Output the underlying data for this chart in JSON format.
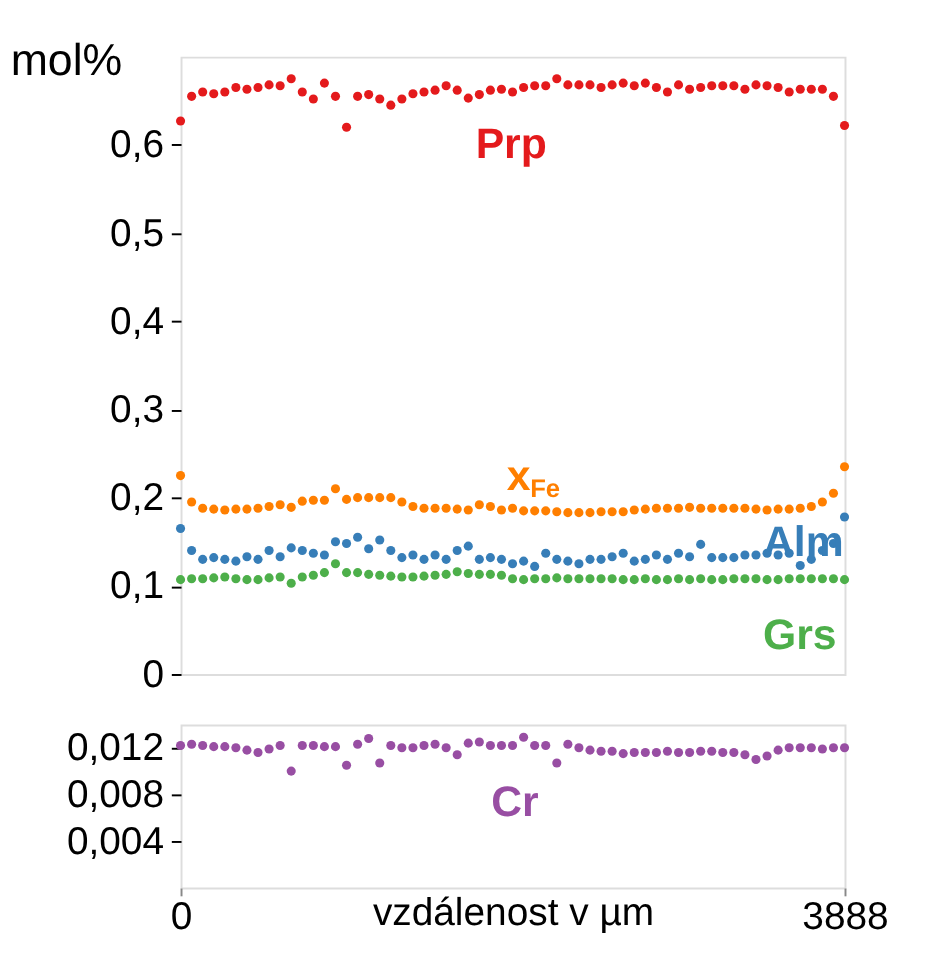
{
  "chart_data": [
    {
      "type": "scatter",
      "ylabel": "mol%",
      "tick_labels": "y",
      "grid": false,
      "marker": "circle",
      "x": [
        0,
        64.8,
        129.6,
        194.4,
        259.2,
        324,
        388.8,
        453.6,
        518.4,
        583.2,
        648,
        712.8,
        777.6,
        842.4,
        907.2,
        972,
        1036.8,
        1101.6,
        1166.4,
        1231.2,
        1296,
        1360.8,
        1425.6,
        1490.4,
        1555.2,
        1620,
        1684.8,
        1749.6,
        1814.4,
        1879.2,
        1944,
        2008.8,
        2073.6,
        2138.4,
        2203.2,
        2268,
        2332.8,
        2397.6,
        2462.4,
        2527.2,
        2592,
        2656.8,
        2721.6,
        2786.4,
        2851.2,
        2916,
        2980.8,
        3045.6,
        3110.4,
        3175.2,
        3240,
        3304.8,
        3369.6,
        3434.4,
        3499.2,
        3564,
        3628.8,
        3693.6,
        3758.4,
        3823.2,
        3888
      ],
      "xlim": [
        0,
        3888
      ],
      "ylim": [
        0,
        0.7
      ],
      "yticks": [
        0,
        {
          "value": 0.1,
          "label": "0,1"
        },
        {
          "value": 0.2,
          "label": "0,2"
        },
        {
          "value": 0.3,
          "label": "0,3"
        },
        {
          "value": 0.4,
          "label": "0,4"
        },
        {
          "value": 0.5,
          "label": "0,5"
        },
        {
          "value": 0.6,
          "label": "0,6"
        }
      ],
      "series": [
        {
          "name": "Prp",
          "color": "#e41a1c",
          "values": [
            0.627,
            0.655,
            0.66,
            0.658,
            0.66,
            0.665,
            0.663,
            0.665,
            0.668,
            0.667,
            0.675,
            0.66,
            0.652,
            0.67,
            0.655,
            0.62,
            0.655,
            0.657,
            0.652,
            0.645,
            0.652,
            0.658,
            0.66,
            0.662,
            0.667,
            0.662,
            0.653,
            0.657,
            0.662,
            0.663,
            0.66,
            0.665,
            0.667,
            0.667,
            0.675,
            0.668,
            0.668,
            0.668,
            0.665,
            0.668,
            0.67,
            0.667,
            0.67,
            0.665,
            0.66,
            0.668,
            0.663,
            0.665,
            0.667,
            0.667,
            0.667,
            0.663,
            0.668,
            0.667,
            0.665,
            0.66,
            0.663,
            0.663,
            0.663,
            0.655,
            0.622
          ]
        },
        {
          "name": "x$_{Fe}$",
          "color": "#ff7f00",
          "values": [
            0.225,
            0.195,
            0.188,
            0.187,
            0.186,
            0.187,
            0.187,
            0.188,
            0.19,
            0.192,
            0.189,
            0.196,
            0.197,
            0.197,
            0.21,
            0.198,
            0.2,
            0.2,
            0.2,
            0.2,
            0.195,
            0.19,
            0.188,
            0.188,
            0.188,
            0.187,
            0.186,
            0.192,
            0.19,
            0.186,
            0.188,
            0.185,
            0.185,
            0.185,
            0.184,
            0.183,
            0.183,
            0.183,
            0.184,
            0.184,
            0.184,
            0.186,
            0.187,
            0.188,
            0.188,
            0.188,
            0.189,
            0.188,
            0.188,
            0.188,
            0.188,
            0.188,
            0.187,
            0.186,
            0.187,
            0.187,
            0.188,
            0.19,
            0.195,
            0.205,
            0.235
          ]
        },
        {
          "name": "Alm",
          "color": "#377eb8",
          "values": [
            0.165,
            0.14,
            0.13,
            0.132,
            0.13,
            0.128,
            0.133,
            0.13,
            0.14,
            0.133,
            0.143,
            0.14,
            0.137,
            0.135,
            0.15,
            0.148,
            0.155,
            0.142,
            0.152,
            0.14,
            0.132,
            0.135,
            0.13,
            0.135,
            0.13,
            0.14,
            0.145,
            0.13,
            0.132,
            0.13,
            0.125,
            0.128,
            0.122,
            0.137,
            0.13,
            0.128,
            0.125,
            0.13,
            0.13,
            0.133,
            0.137,
            0.128,
            0.13,
            0.135,
            0.13,
            0.137,
            0.133,
            0.147,
            0.132,
            0.132,
            0.132,
            0.135,
            0.135,
            0.137,
            0.135,
            0.137,
            0.123,
            0.13,
            0.14,
            0.148,
            0.178
          ]
        },
        {
          "name": "Grs",
          "color": "#4daf4a",
          "values": [
            0.107,
            0.108,
            0.108,
            0.109,
            0.11,
            0.108,
            0.107,
            0.107,
            0.109,
            0.11,
            0.103,
            0.11,
            0.112,
            0.115,
            0.125,
            0.115,
            0.115,
            0.113,
            0.112,
            0.111,
            0.11,
            0.11,
            0.111,
            0.112,
            0.113,
            0.116,
            0.114,
            0.113,
            0.113,
            0.112,
            0.108,
            0.107,
            0.108,
            0.108,
            0.109,
            0.108,
            0.108,
            0.108,
            0.108,
            0.108,
            0.107,
            0.107,
            0.108,
            0.107,
            0.107,
            0.108,
            0.107,
            0.108,
            0.107,
            0.107,
            0.108,
            0.108,
            0.108,
            0.107,
            0.107,
            0.108,
            0.108,
            0.108,
            0.108,
            0.108,
            0.107
          ]
        }
      ]
    },
    {
      "type": "scatter",
      "xlabel": "vzdálenost v µm",
      "grid": false,
      "marker": "circle",
      "x": [
        0,
        64.8,
        129.6,
        194.4,
        259.2,
        324,
        388.8,
        453.6,
        518.4,
        583.2,
        648,
        712.8,
        777.6,
        842.4,
        907.2,
        972,
        1036.8,
        1101.6,
        1166.4,
        1231.2,
        1296,
        1360.8,
        1425.6,
        1490.4,
        1555.2,
        1620,
        1684.8,
        1749.6,
        1814.4,
        1879.2,
        1944,
        2008.8,
        2073.6,
        2138.4,
        2203.2,
        2268,
        2332.8,
        2397.6,
        2462.4,
        2527.2,
        2592,
        2656.8,
        2721.6,
        2786.4,
        2851.2,
        2916,
        2980.8,
        3045.6,
        3110.4,
        3175.2,
        3240,
        3304.8,
        3369.6,
        3434.4,
        3499.2,
        3564,
        3628.8,
        3693.6,
        3758.4,
        3823.2,
        3888
      ],
      "xlim": [
        0,
        3888
      ],
      "xticks": [
        0,
        3888
      ],
      "ylim": [
        0,
        0.014
      ],
      "yticks": [
        {
          "value": 0.004,
          "label": "0,004"
        },
        {
          "value": 0.008,
          "label": "0,008"
        },
        {
          "value": 0.012,
          "label": "0,012"
        }
      ],
      "series": [
        {
          "name": "Cr",
          "color": "#984ea3",
          "values": [
            0.0122,
            0.0123,
            0.0122,
            0.0121,
            0.0121,
            0.012,
            0.0118,
            0.0116,
            0.0119,
            0.0122,
            0.01,
            0.0122,
            0.0122,
            0.0121,
            0.0121,
            0.0105,
            0.0123,
            0.0128,
            0.0107,
            0.0122,
            0.012,
            0.012,
            0.0122,
            0.0123,
            0.012,
            0.0114,
            0.0124,
            0.0125,
            0.0122,
            0.0122,
            0.0122,
            0.0129,
            0.0122,
            0.0122,
            0.0107,
            0.0123,
            0.012,
            0.0118,
            0.0117,
            0.0117,
            0.0115,
            0.0116,
            0.0116,
            0.0116,
            0.0117,
            0.0116,
            0.0116,
            0.0117,
            0.0117,
            0.0116,
            0.0116,
            0.0114,
            0.011,
            0.0113,
            0.0118,
            0.012,
            0.012,
            0.012,
            0.0119,
            0.012,
            0.012
          ]
        }
      ]
    }
  ]
}
